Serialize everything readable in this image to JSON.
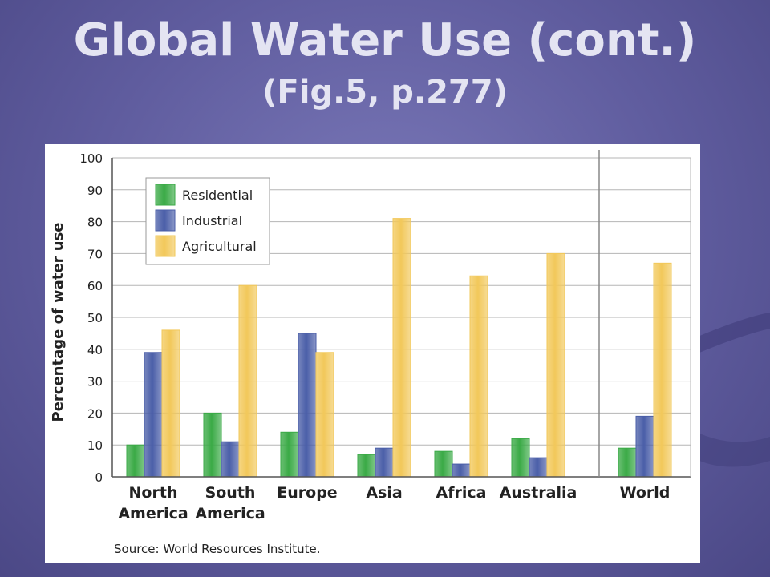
{
  "slide": {
    "title": "Global Water Use (cont.)",
    "subtitle": "(Fig.5, p.277)"
  },
  "chart_data": {
    "type": "bar",
    "ylabel": "Percentage of water use",
    "ylim": [
      0,
      100
    ],
    "yticks": [
      0,
      10,
      20,
      30,
      40,
      50,
      60,
      70,
      80,
      90,
      100
    ],
    "grid": true,
    "legend_position": "top-left",
    "categories": [
      [
        "North",
        "America"
      ],
      [
        "South",
        "America"
      ],
      [
        "Europe"
      ],
      [
        "Asia"
      ],
      [
        "Africa"
      ],
      [
        "Australia"
      ],
      [
        "World"
      ]
    ],
    "series": [
      {
        "name": "Residential",
        "color": "#3aaa46",
        "values": [
          10,
          20,
          14,
          7,
          8,
          12,
          9
        ]
      },
      {
        "name": "Industrial",
        "color": "#4a5ea8",
        "values": [
          39,
          11,
          45,
          9,
          4,
          6,
          19
        ]
      },
      {
        "name": "Agricultural",
        "color": "#f2c85a",
        "values": [
          46,
          60,
          39,
          81,
          63,
          70,
          67
        ]
      }
    ],
    "source": "Source: World Resources Institute."
  }
}
